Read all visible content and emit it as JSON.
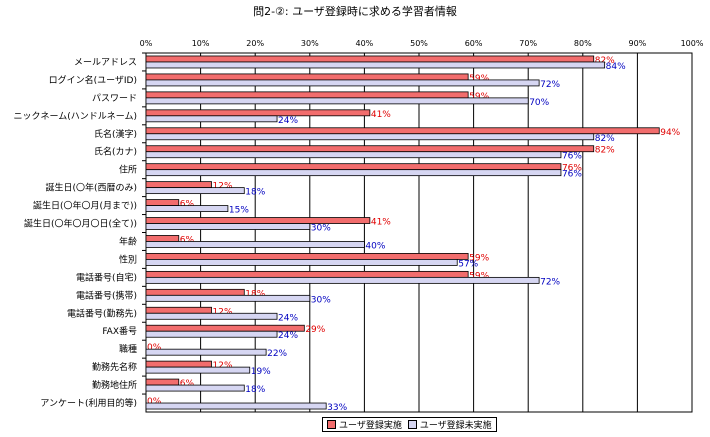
{
  "chart_data": {
    "type": "bar",
    "orientation": "horizontal",
    "title": "問2-②: ユーザ登録時に求める学習者情報",
    "xlim": [
      0,
      100
    ],
    "x_ticks": [
      "0%",
      "10%",
      "20%",
      "30%",
      "40%",
      "50%",
      "60%",
      "70%",
      "80%",
      "90%",
      "100%"
    ],
    "categories": [
      "メールアドレス",
      "ログイン名(ユーザID)",
      "パスワード",
      "ニックネーム(ハンドルネーム)",
      "氏名(漢字)",
      "氏名(カナ)",
      "住所",
      "誕生日(〇年(西暦のみ)",
      "誕生日(〇年〇月(月まで))",
      "誕生日(〇年〇月〇日(全て))",
      "年齢",
      "性別",
      "電話番号(自宅)",
      "電話番号(携帯)",
      "電話番号(勤務先)",
      "FAX番号",
      "職種",
      "勤務先名称",
      "勤務地住所",
      "アンケート(利用目的等)"
    ],
    "series": [
      {
        "name": "ユーザ登録実施",
        "color": "#F26D6D",
        "label_color": "#E00000",
        "values": [
          82,
          59,
          59,
          41,
          94,
          82,
          76,
          12,
          6,
          41,
          6,
          59,
          59,
          18,
          12,
          29,
          0,
          12,
          6,
          0
        ],
        "labels": [
          "82%",
          "59%",
          "59%",
          "41%",
          "94%",
          "82%",
          "76%",
          "12%",
          "6%",
          "41%",
          "6%",
          "59%",
          "59%",
          "18%",
          "12%",
          "29%",
          "0%",
          "12%",
          "6%",
          "0%"
        ]
      },
      {
        "name": "ユーザ登録未実施",
        "color": "#D6D6F2",
        "label_color": "#0000C0",
        "values": [
          84,
          72,
          70,
          24,
          82,
          76,
          76,
          18,
          15,
          30,
          40,
          57,
          72,
          30,
          24,
          24,
          22,
          19,
          18,
          33
        ],
        "labels": [
          "84%",
          "72%",
          "70%",
          "24%",
          "82%",
          "76%",
          "76%",
          "18%",
          "15%",
          "30%",
          "40%",
          "57%",
          "72%",
          "30%",
          "24%",
          "24%",
          "22%",
          "19%",
          "18%",
          "33%"
        ]
      }
    ],
    "grid": true,
    "legend_position": "bottom"
  }
}
